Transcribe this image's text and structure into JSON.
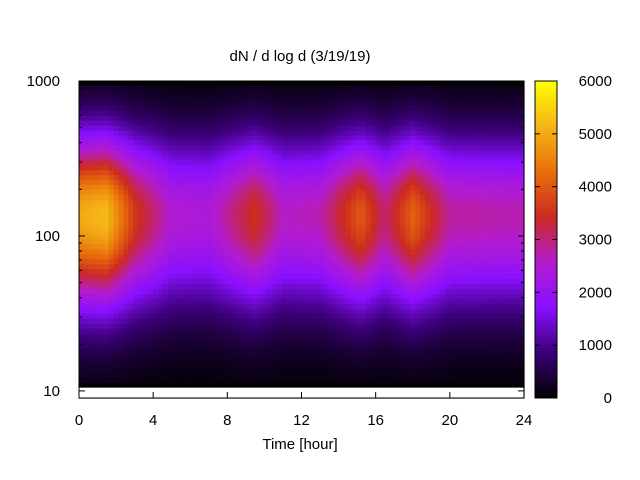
{
  "chart_data": {
    "type": "heatmap",
    "title": "dN / d log d (3/19/19)",
    "xlabel": "Time [hour]",
    "ylabel": "",
    "xlim": [
      0,
      24
    ],
    "ylim": [
      9,
      1000
    ],
    "y_scale": "log",
    "x_ticks": [
      0,
      4,
      8,
      12,
      16,
      20,
      24
    ],
    "x_tick_labels": [
      "0",
      "4",
      "8",
      "12",
      "16",
      "20",
      "24"
    ],
    "y_ticks": [
      10,
      100,
      1000
    ],
    "y_tick_labels": [
      "10",
      "100",
      "1000"
    ],
    "colorbar": {
      "min": 0,
      "max": 6000,
      "ticks": [
        0,
        1000,
        2000,
        3000,
        4000,
        5000,
        6000
      ],
      "tick_labels": [
        "0",
        "1000",
        "2000",
        "3000",
        "4000",
        "5000",
        "6000"
      ],
      "colormap": [
        "#000000",
        "#3b0078",
        "#8a10ff",
        "#b31ccf",
        "#cc2a20",
        "#e8700a",
        "#f5b516",
        "#ffff00"
      ]
    },
    "grid": false,
    "peak_diameter": 135,
    "intensity_by_time": [
      {
        "time": 0,
        "value": 5000
      },
      {
        "time": 1.5,
        "value": 5200
      },
      {
        "time": 3,
        "value": 3600
      },
      {
        "time": 5,
        "value": 2500
      },
      {
        "time": 7,
        "value": 2400
      },
      {
        "time": 9.5,
        "value": 3500
      },
      {
        "time": 11,
        "value": 2600
      },
      {
        "time": 13,
        "value": 2700
      },
      {
        "time": 15.2,
        "value": 4000
      },
      {
        "time": 16.5,
        "value": 3000
      },
      {
        "time": 18,
        "value": 4100
      },
      {
        "time": 20,
        "value": 2800
      },
      {
        "time": 24,
        "value": 2700
      }
    ]
  }
}
